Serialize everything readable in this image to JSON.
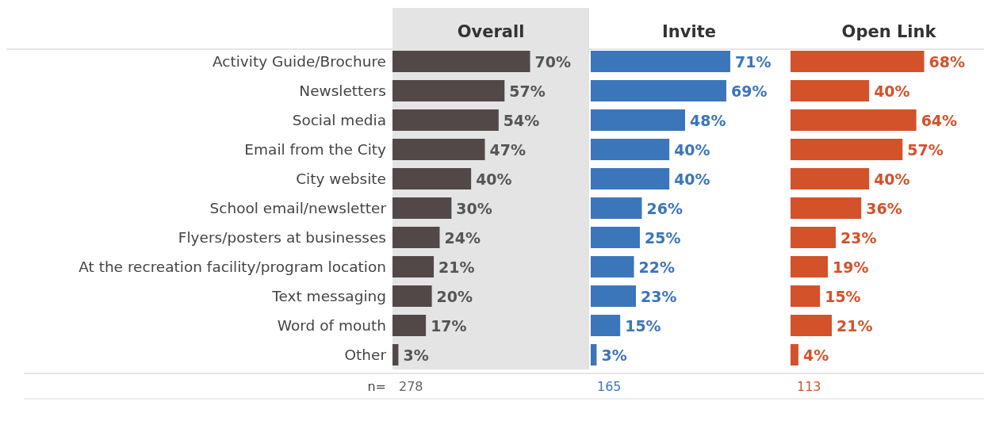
{
  "chart_data": [
    {
      "type": "bar",
      "orientation": "horizontal",
      "title": "Overall",
      "categories": [
        "Activity Guide/Brochure",
        "Newsletters",
        "Social media",
        "Email from the City",
        "City website",
        "School email/newsletter",
        "Flyers/posters at businesses",
        "At the recreation facility/program location",
        "Text messaging",
        "Word of mouth",
        "Other"
      ],
      "values": [
        70,
        57,
        54,
        47,
        40,
        30,
        24,
        21,
        20,
        17,
        3
      ],
      "value_labels": [
        "70%",
        "57%",
        "54%",
        "47%",
        "40%",
        "30%",
        "24%",
        "21%",
        "20%",
        "17%",
        "3%"
      ],
      "color": "#534848",
      "tick_labels": "y",
      "annotations": [
        "n=",
        "278"
      ]
    },
    {
      "type": "bar",
      "orientation": "horizontal",
      "title": "Invite",
      "values": [
        71,
        69,
        48,
        40,
        40,
        26,
        25,
        22,
        23,
        15,
        3
      ],
      "value_labels": [
        "71%",
        "69%",
        "48%",
        "40%",
        "40%",
        "26%",
        "25%",
        "22%",
        "23%",
        "15%",
        "3%"
      ],
      "color": "#3b76ba",
      "tick_labels": false,
      "annotations": [
        "165"
      ]
    },
    {
      "type": "bar",
      "orientation": "horizontal",
      "title": "Open Link",
      "values": [
        68,
        40,
        64,
        57,
        40,
        36,
        23,
        19,
        15,
        21,
        4
      ],
      "value_labels": [
        "68%",
        "40%",
        "64%",
        "57%",
        "40%",
        "36%",
        "23%",
        "19%",
        "15%",
        "21%",
        "4%"
      ],
      "color": "#d4522a",
      "tick_labels": false,
      "annotations": [
        "113"
      ]
    }
  ]
}
